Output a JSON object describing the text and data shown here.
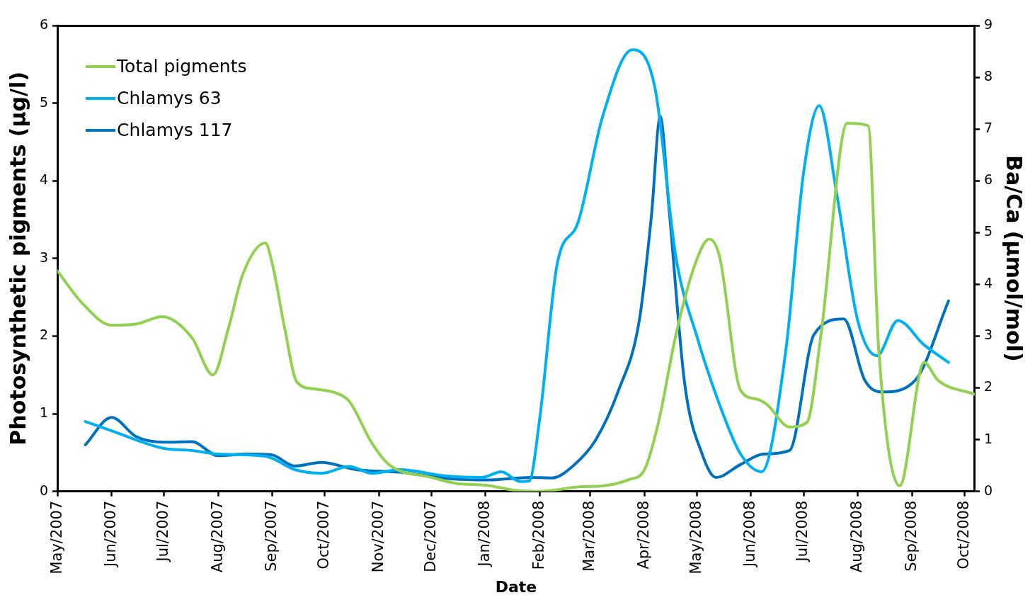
{
  "chart_data": {
    "type": "line",
    "xlabel": "Date",
    "ylabel": "Photosynthetic pigments (µg/l)",
    "y2label": "Ba/Ca (µmol/mol)",
    "xlim": [
      "2007-05-01",
      "2008-10-07"
    ],
    "xticks": [
      {
        "value": "2007-05-01",
        "label": "May/2007"
      },
      {
        "value": "2007-06-01",
        "label": "Jun/2007"
      },
      {
        "value": "2007-07-01",
        "label": "Jul/2007"
      },
      {
        "value": "2007-08-01",
        "label": "Aug/2007"
      },
      {
        "value": "2007-09-01",
        "label": "Sep/2007"
      },
      {
        "value": "2007-10-01",
        "label": "Oct/2007"
      },
      {
        "value": "2007-11-01",
        "label": "Nov/2007"
      },
      {
        "value": "2007-12-01",
        "label": "Dec/2007"
      },
      {
        "value": "2008-01-01",
        "label": "Jan/2008"
      },
      {
        "value": "2008-02-01",
        "label": "Feb/2008"
      },
      {
        "value": "2008-03-01",
        "label": "Mar/2008"
      },
      {
        "value": "2008-04-01",
        "label": "Apr/2008"
      },
      {
        "value": "2008-05-01",
        "label": "May/2008"
      },
      {
        "value": "2008-06-01",
        "label": "Jun/2008"
      },
      {
        "value": "2008-07-01",
        "label": "Jul/2008"
      },
      {
        "value": "2008-08-01",
        "label": "Aug/2008"
      },
      {
        "value": "2008-09-01",
        "label": "Sep/2008"
      },
      {
        "value": "2008-10-01",
        "label": "Oct/2008"
      }
    ],
    "ylim": [
      0,
      6
    ],
    "yticks": [
      0,
      1,
      2,
      3,
      4,
      5,
      6
    ],
    "y2lim": [
      0,
      9
    ],
    "y2ticks": [
      0,
      1,
      2,
      3,
      4,
      5,
      6,
      7,
      8,
      9
    ],
    "grid": false,
    "legend": "top left",
    "marker": "none",
    "line_style": "solid",
    "series": [
      {
        "name": "Total pigments",
        "color": "#92d050",
        "x": [
          "2007-05-01",
          "2007-05-15",
          "2007-06-01",
          "2007-06-16",
          "2007-06-30",
          "2007-07-17",
          "2007-07-29",
          "2007-08-07",
          "2007-08-15",
          "2007-08-28",
          "2007-09-01",
          "2007-09-08",
          "2007-09-15",
          "2007-09-25",
          "2007-10-07",
          "2007-10-15",
          "2007-10-28",
          "2007-11-07",
          "2007-12-01",
          "2007-12-16",
          "2008-01-01",
          "2008-01-19",
          "2008-02-01",
          "2008-02-25",
          "2008-03-08",
          "2008-03-23",
          "2008-04-01",
          "2008-04-09",
          "2008-04-19",
          "2008-04-30",
          "2008-05-08",
          "2008-05-14",
          "2008-05-26",
          "2008-06-04",
          "2008-06-10",
          "2008-06-23",
          "2008-07-03",
          "2008-07-11",
          "2008-07-26",
          "2008-08-07",
          "2008-08-13",
          "2008-08-25",
          "2008-09-08",
          "2008-09-16",
          "2008-10-07"
        ],
        "values": [
          2.84,
          2.43,
          2.14,
          2.16,
          2.25,
          1.98,
          1.5,
          2.11,
          2.79,
          3.2,
          2.93,
          2.11,
          1.41,
          1.32,
          1.27,
          1.16,
          0.62,
          0.34,
          0.18,
          0.1,
          0.08,
          0.01,
          0,
          0.06,
          0.07,
          0.15,
          0.28,
          0.89,
          2.02,
          2.93,
          3.25,
          3.02,
          1.3,
          1.19,
          1.12,
          0.83,
          0.89,
          2.02,
          4.74,
          4.71,
          1.84,
          0.07,
          1.66,
          1.43,
          1.25
        ]
      },
      {
        "name": "Chlamys 63",
        "color": "#00b0f0",
        "axis": "y2",
        "x": [
          "2007-05-17",
          "2007-06-01",
          "2007-07-01",
          "2007-07-17",
          "2007-08-01",
          "2007-08-28",
          "2007-09-14",
          "2007-09-29",
          "2007-10-15",
          "2007-10-28",
          "2007-11-13",
          "2007-12-09",
          "2007-12-30",
          "2008-01-10",
          "2008-01-21",
          "2008-01-26",
          "2008-02-01",
          "2008-02-11",
          "2008-02-23",
          "2008-03-08",
          "2008-03-25",
          "2008-04-07",
          "2008-04-19",
          "2008-05-01",
          "2008-05-14",
          "2008-05-26",
          "2008-06-07",
          "2008-06-21",
          "2008-07-01",
          "2008-07-10",
          "2008-07-20",
          "2008-08-01",
          "2008-08-12",
          "2008-08-24",
          "2008-09-08",
          "2008-09-22"
        ],
        "values": [
          1.35,
          1.17,
          0.83,
          0.79,
          0.72,
          0.68,
          0.42,
          0.35,
          0.48,
          0.35,
          0.42,
          0.3,
          0.27,
          0.38,
          0.19,
          0.2,
          1.4,
          4.39,
          5.2,
          7.24,
          8.53,
          7.79,
          4.52,
          2.99,
          1.67,
          0.72,
          0.38,
          2.76,
          6.15,
          7.45,
          5.75,
          3.3,
          2.62,
          3.3,
          2.83,
          2.49
        ]
      },
      {
        "name": "Chlamys 117",
        "color": "#0070c0",
        "axis": "y2",
        "x": [
          "2007-05-17",
          "2007-06-01",
          "2007-06-15",
          "2007-07-01",
          "2007-07-17",
          "2007-08-01",
          "2007-08-17",
          "2007-08-31",
          "2007-09-14",
          "2007-09-29",
          "2007-10-19",
          "2007-11-13",
          "2007-12-13",
          "2008-01-02",
          "2008-01-27",
          "2008-02-08",
          "2008-02-21",
          "2008-03-04",
          "2008-03-17",
          "2008-03-29",
          "2008-04-05",
          "2008-04-10",
          "2008-04-15",
          "2008-04-24",
          "2008-05-04",
          "2008-05-12",
          "2008-05-26",
          "2008-06-08",
          "2008-06-23",
          "2008-07-07",
          "2008-07-24",
          "2008-08-05",
          "2008-08-15",
          "2008-09-03",
          "2008-09-22"
        ],
        "values": [
          0.9,
          1.43,
          1.06,
          0.95,
          0.96,
          0.69,
          0.72,
          0.71,
          0.49,
          0.56,
          0.42,
          0.37,
          0.24,
          0.22,
          0.27,
          0.26,
          0.52,
          0.99,
          1.94,
          3.3,
          5.34,
          7.24,
          5.48,
          2.08,
          0.72,
          0.27,
          0.52,
          0.72,
          0.79,
          3.03,
          3.33,
          2.15,
          1.92,
          2.15,
          3.68
        ]
      }
    ]
  }
}
